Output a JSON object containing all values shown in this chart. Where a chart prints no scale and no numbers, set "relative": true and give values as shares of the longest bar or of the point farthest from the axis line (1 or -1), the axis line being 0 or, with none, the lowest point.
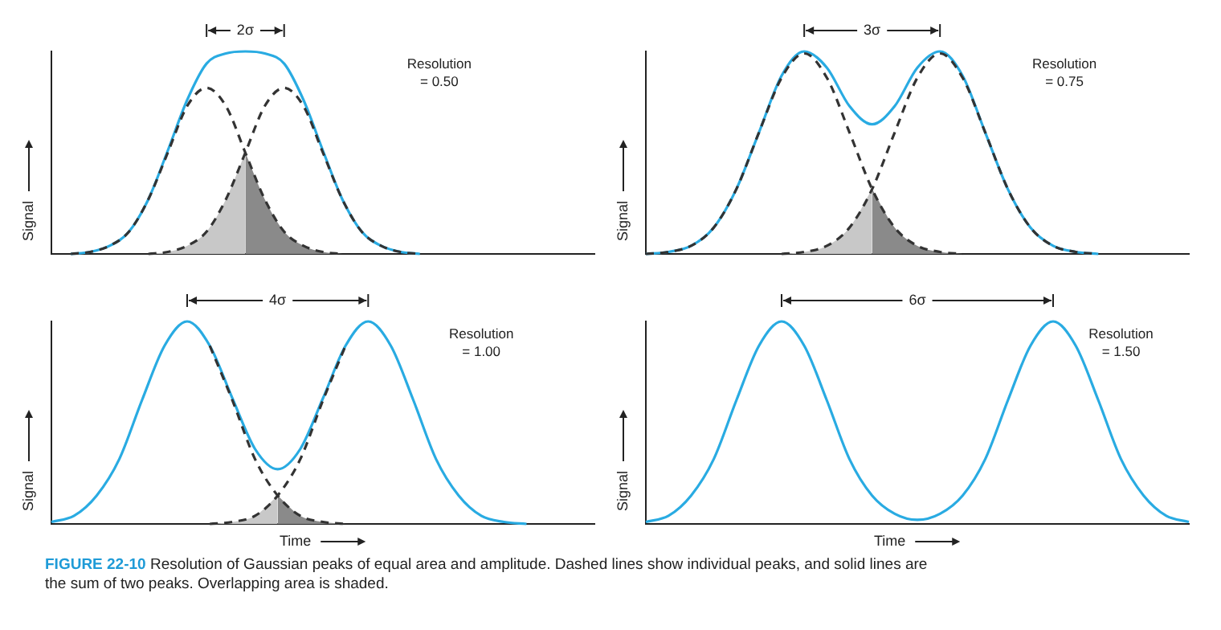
{
  "chart_data": [
    {
      "type": "line",
      "relative": true,
      "grid": false,
      "legend": false,
      "marker": "none",
      "ylabel": "Signal",
      "annotations": [
        "2σ",
        "Resolution = 0.50"
      ],
      "categories": [
        null,
        null,
        null,
        null,
        null,
        null,
        null,
        null,
        null,
        null,
        null,
        null,
        null,
        null,
        null,
        null,
        null,
        null,
        null,
        null,
        null,
        null,
        null,
        null,
        null,
        null,
        null,
        null,
        null
      ],
      "series": [
        {
          "type": "area",
          "color": "#c8c8c8",
          "values": [
            null,
            null,
            null,
            null,
            null,
            0.0,
            0.01,
            0.04,
            0.11,
            0.27,
            0.5,
            null,
            null,
            null,
            null,
            null,
            null,
            null,
            null,
            null,
            null,
            null,
            null,
            null,
            null,
            null,
            null,
            null,
            null
          ]
        },
        {
          "type": "area",
          "color": "#8a8a8a",
          "values": [
            null,
            null,
            null,
            null,
            null,
            null,
            null,
            null,
            null,
            null,
            0.5,
            0.27,
            0.11,
            0.04,
            0.01,
            0.0,
            null,
            null,
            null,
            null,
            null,
            null,
            null,
            null,
            null,
            null,
            null,
            null,
            null
          ]
        },
        {
          "type": "line",
          "color": "#333333",
          "line_style": "dashed",
          "values": [
            null,
            0.0,
            0.01,
            0.04,
            0.11,
            0.27,
            0.5,
            0.73,
            0.82,
            0.73,
            0.5,
            0.27,
            0.11,
            0.04,
            0.01,
            0.0,
            null,
            null,
            null,
            null,
            null,
            null,
            null,
            null,
            null,
            null,
            null,
            null,
            null
          ]
        },
        {
          "type": "line",
          "color": "#333333",
          "line_style": "dashed",
          "values": [
            null,
            null,
            null,
            null,
            null,
            0.0,
            0.01,
            0.04,
            0.11,
            0.27,
            0.5,
            0.73,
            0.82,
            0.73,
            0.5,
            0.27,
            0.11,
            0.04,
            0.01,
            0.0,
            null,
            null,
            null,
            null,
            null,
            null,
            null,
            null,
            null
          ]
        },
        {
          "type": "line",
          "color": "#29abe2",
          "line_style": "solid",
          "values": [
            null,
            0.0,
            0.01,
            0.04,
            0.11,
            0.27,
            0.51,
            0.76,
            0.94,
            0.99,
            1.0,
            0.99,
            0.94,
            0.76,
            0.51,
            0.27,
            0.11,
            0.04,
            0.01,
            0.0,
            null,
            null,
            null,
            null,
            null,
            null,
            null,
            null,
            null
          ]
        }
      ]
    },
    {
      "type": "line",
      "relative": true,
      "grid": false,
      "legend": false,
      "marker": "none",
      "ylabel": "Signal",
      "annotations": [
        "3σ",
        "Resolution = 0.75"
      ],
      "categories": [
        null,
        null,
        null,
        null,
        null,
        null,
        null,
        null,
        null,
        null,
        null,
        null,
        null,
        null,
        null,
        null,
        null,
        null,
        null,
        null,
        null,
        null,
        null,
        null,
        null
      ],
      "series": [
        {
          "type": "area",
          "color": "#c8c8c8",
          "values": [
            null,
            null,
            null,
            null,
            null,
            null,
            0.0,
            0.01,
            0.04,
            0.13,
            0.32,
            null,
            null,
            null,
            null,
            null,
            null,
            null,
            null,
            null,
            null,
            null,
            null,
            null,
            null
          ]
        },
        {
          "type": "area",
          "color": "#8a8a8a",
          "values": [
            null,
            null,
            null,
            null,
            null,
            null,
            null,
            null,
            null,
            null,
            0.32,
            0.13,
            0.04,
            0.01,
            0.0,
            null,
            null,
            null,
            null,
            null,
            null,
            null,
            null,
            null,
            null
          ]
        },
        {
          "type": "line",
          "color": "#333333",
          "line_style": "dashed",
          "values": [
            0.0,
            0.01,
            0.04,
            0.13,
            0.32,
            0.6,
            0.87,
            0.99,
            0.87,
            0.6,
            0.32,
            0.13,
            0.04,
            0.01,
            0.0,
            null,
            null,
            null,
            null,
            null,
            null,
            null,
            null,
            null,
            null
          ]
        },
        {
          "type": "line",
          "color": "#333333",
          "line_style": "dashed",
          "values": [
            null,
            null,
            null,
            null,
            null,
            null,
            0.0,
            0.01,
            0.04,
            0.13,
            0.32,
            0.6,
            0.87,
            0.99,
            0.87,
            0.6,
            0.32,
            0.13,
            0.04,
            0.01,
            0.0,
            null,
            null,
            null,
            null
          ]
        },
        {
          "type": "line",
          "color": "#29abe2",
          "line_style": "solid",
          "values": [
            0.0,
            0.01,
            0.04,
            0.13,
            0.32,
            0.6,
            0.88,
            1.0,
            0.92,
            0.73,
            0.64,
            0.73,
            0.92,
            1.0,
            0.88,
            0.6,
            0.32,
            0.13,
            0.04,
            0.01,
            0.0,
            null,
            null,
            null,
            null
          ]
        }
      ]
    },
    {
      "type": "line",
      "relative": true,
      "grid": false,
      "legend": false,
      "marker": "none",
      "ylabel": "Signal",
      "xlabel": "Time",
      "annotations": [
        "4σ",
        "Resolution = 1.00"
      ],
      "categories": [
        null,
        null,
        null,
        null,
        null,
        null,
        null,
        null,
        null,
        null,
        null,
        null,
        null,
        null,
        null,
        null,
        null,
        null,
        null,
        null,
        null,
        null,
        null,
        null,
        null
      ],
      "series": [
        {
          "type": "area",
          "color": "#c8c8c8",
          "values": [
            null,
            null,
            null,
            null,
            null,
            null,
            null,
            0.0,
            0.01,
            0.04,
            0.14,
            null,
            null,
            null,
            null,
            null,
            null,
            null,
            null,
            null,
            null,
            null,
            null,
            null,
            null
          ]
        },
        {
          "type": "area",
          "color": "#8a8a8a",
          "values": [
            null,
            null,
            null,
            null,
            null,
            null,
            null,
            null,
            null,
            null,
            0.14,
            0.04,
            0.01,
            0.0,
            null,
            null,
            null,
            null,
            null,
            null,
            null,
            null,
            null,
            null,
            null
          ]
        },
        {
          "type": "line",
          "color": "#333333",
          "line_style": "dashed",
          "values": [
            null,
            null,
            null,
            null,
            null,
            null,
            null,
            0.88,
            0.61,
            0.32,
            0.14,
            0.04,
            0.01,
            0.0,
            null,
            null,
            null,
            null,
            null,
            null,
            null,
            null,
            null,
            null,
            null
          ]
        },
        {
          "type": "line",
          "color": "#333333",
          "line_style": "dashed",
          "values": [
            null,
            null,
            null,
            null,
            null,
            null,
            null,
            0.0,
            0.01,
            0.04,
            0.14,
            0.32,
            0.61,
            0.88,
            null,
            null,
            null,
            null,
            null,
            null,
            null,
            null,
            null,
            null,
            null
          ]
        },
        {
          "type": "line",
          "color": "#29abe2",
          "line_style": "solid",
          "values": [
            0.01,
            0.04,
            0.14,
            0.32,
            0.61,
            0.88,
            1.0,
            0.88,
            0.62,
            0.37,
            0.27,
            0.37,
            0.62,
            0.88,
            1.0,
            0.88,
            0.61,
            0.32,
            0.14,
            0.04,
            0.01,
            0.0,
            null,
            null,
            null
          ]
        }
      ]
    },
    {
      "type": "line",
      "relative": true,
      "grid": false,
      "legend": false,
      "marker": "none",
      "ylabel": "Signal",
      "xlabel": "Time",
      "annotations": [
        "6σ",
        "Resolution = 1.50",
        "FIGURE 22-10 Resolution of Gaussian peaks of equal area and amplitude. Dashed lines show individual peaks, and solid lines are the sum of two peaks. Overlapping area is shaded."
      ],
      "categories": [
        null,
        null,
        null,
        null,
        null,
        null,
        null,
        null,
        null,
        null,
        null,
        null,
        null,
        null,
        null,
        null,
        null,
        null,
        null,
        null,
        null,
        null,
        null,
        null,
        null
      ],
      "series": [
        {
          "type": "line",
          "color": "#29abe2",
          "line_style": "solid",
          "values": [
            0.01,
            0.04,
            0.14,
            0.32,
            0.61,
            0.88,
            1.0,
            0.88,
            0.61,
            0.32,
            0.14,
            0.05,
            0.02,
            0.05,
            0.14,
            0.32,
            0.61,
            0.88,
            1.0,
            0.88,
            0.61,
            0.32,
            0.14,
            0.04,
            0.01
          ]
        }
      ]
    }
  ]
}
